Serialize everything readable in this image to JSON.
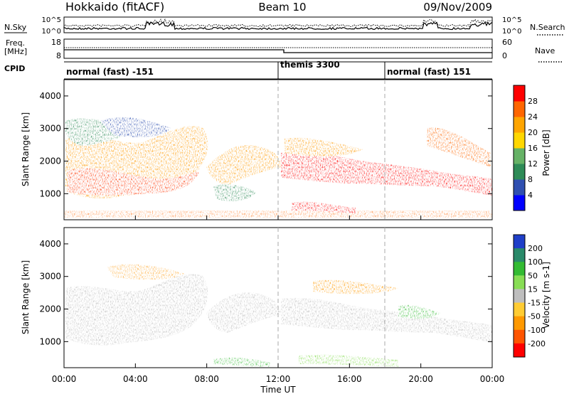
{
  "header": {
    "station": "Hokkaido (fitACF)",
    "beam": "Beam 10",
    "date": "09/Nov/2009"
  },
  "noise_panel": {
    "left_label": "N.Sky",
    "right_label": "N.Search",
    "left_ticks": [
      "10^5",
      "10^0"
    ],
    "right_ticks": [
      "10^5",
      "10^0"
    ]
  },
  "freq_panel": {
    "left_label_1": "Freq.",
    "left_label_2": "[MHz]",
    "left_ticks": [
      "18",
      "8"
    ],
    "right_label": "Nave",
    "right_ticks": [
      "60",
      "0"
    ]
  },
  "cpid_panel": {
    "label": "CPID",
    "segments": [
      {
        "label": "normal (fast) -151",
        "start_hour": 0
      },
      {
        "label": "themis 3300",
        "start_hour": 12
      },
      {
        "label": "normal (fast) 151",
        "start_hour": 18
      }
    ]
  },
  "colors": {
    "power": [
      "#0000ff",
      "#2f4fb0",
      "#2e8b57",
      "#66b266",
      "#ffd700",
      "#ffa500",
      "#ff6600",
      "#ff0000"
    ],
    "velocity": [
      "#1f3fc8",
      "#2a8a6a",
      "#33bb33",
      "#88dd55",
      "#bebebe",
      "#ffcc33",
      "#ff9900",
      "#ff5500",
      "#ff0000"
    ],
    "ground_scatter": "#bebebe"
  },
  "chart_data": [
    {
      "type": "heatmap",
      "name": "power",
      "ylabel": "Slant Range [km]",
      "yticks": [
        "1000",
        "2000",
        "3000",
        "4000"
      ],
      "ylim": [
        200,
        4500
      ],
      "xlim": [
        0,
        24
      ],
      "colorbar_label": "Power [dB]",
      "colorbar_ticks": [
        "4",
        "8",
        "12",
        "16",
        "20",
        "24",
        "28"
      ],
      "colorbar_range": [
        0,
        32
      ]
    },
    {
      "type": "heatmap",
      "name": "velocity",
      "ylabel": "Slant Range [km]",
      "yticks": [
        "1000",
        "2000",
        "3000",
        "4000"
      ],
      "ylim": [
        200,
        4500
      ],
      "xlim": [
        0,
        24
      ],
      "colorbar_label": "Velocity [m s-1]",
      "colorbar_ticks": [
        "200",
        "100",
        "50",
        "15",
        "-15",
        "-50",
        "-100",
        "-200"
      ]
    }
  ],
  "xaxis": {
    "ticks": [
      "00:00",
      "04:00",
      "08:00",
      "12:00",
      "16:00",
      "20:00",
      "00:00"
    ],
    "label": "Time UT"
  }
}
